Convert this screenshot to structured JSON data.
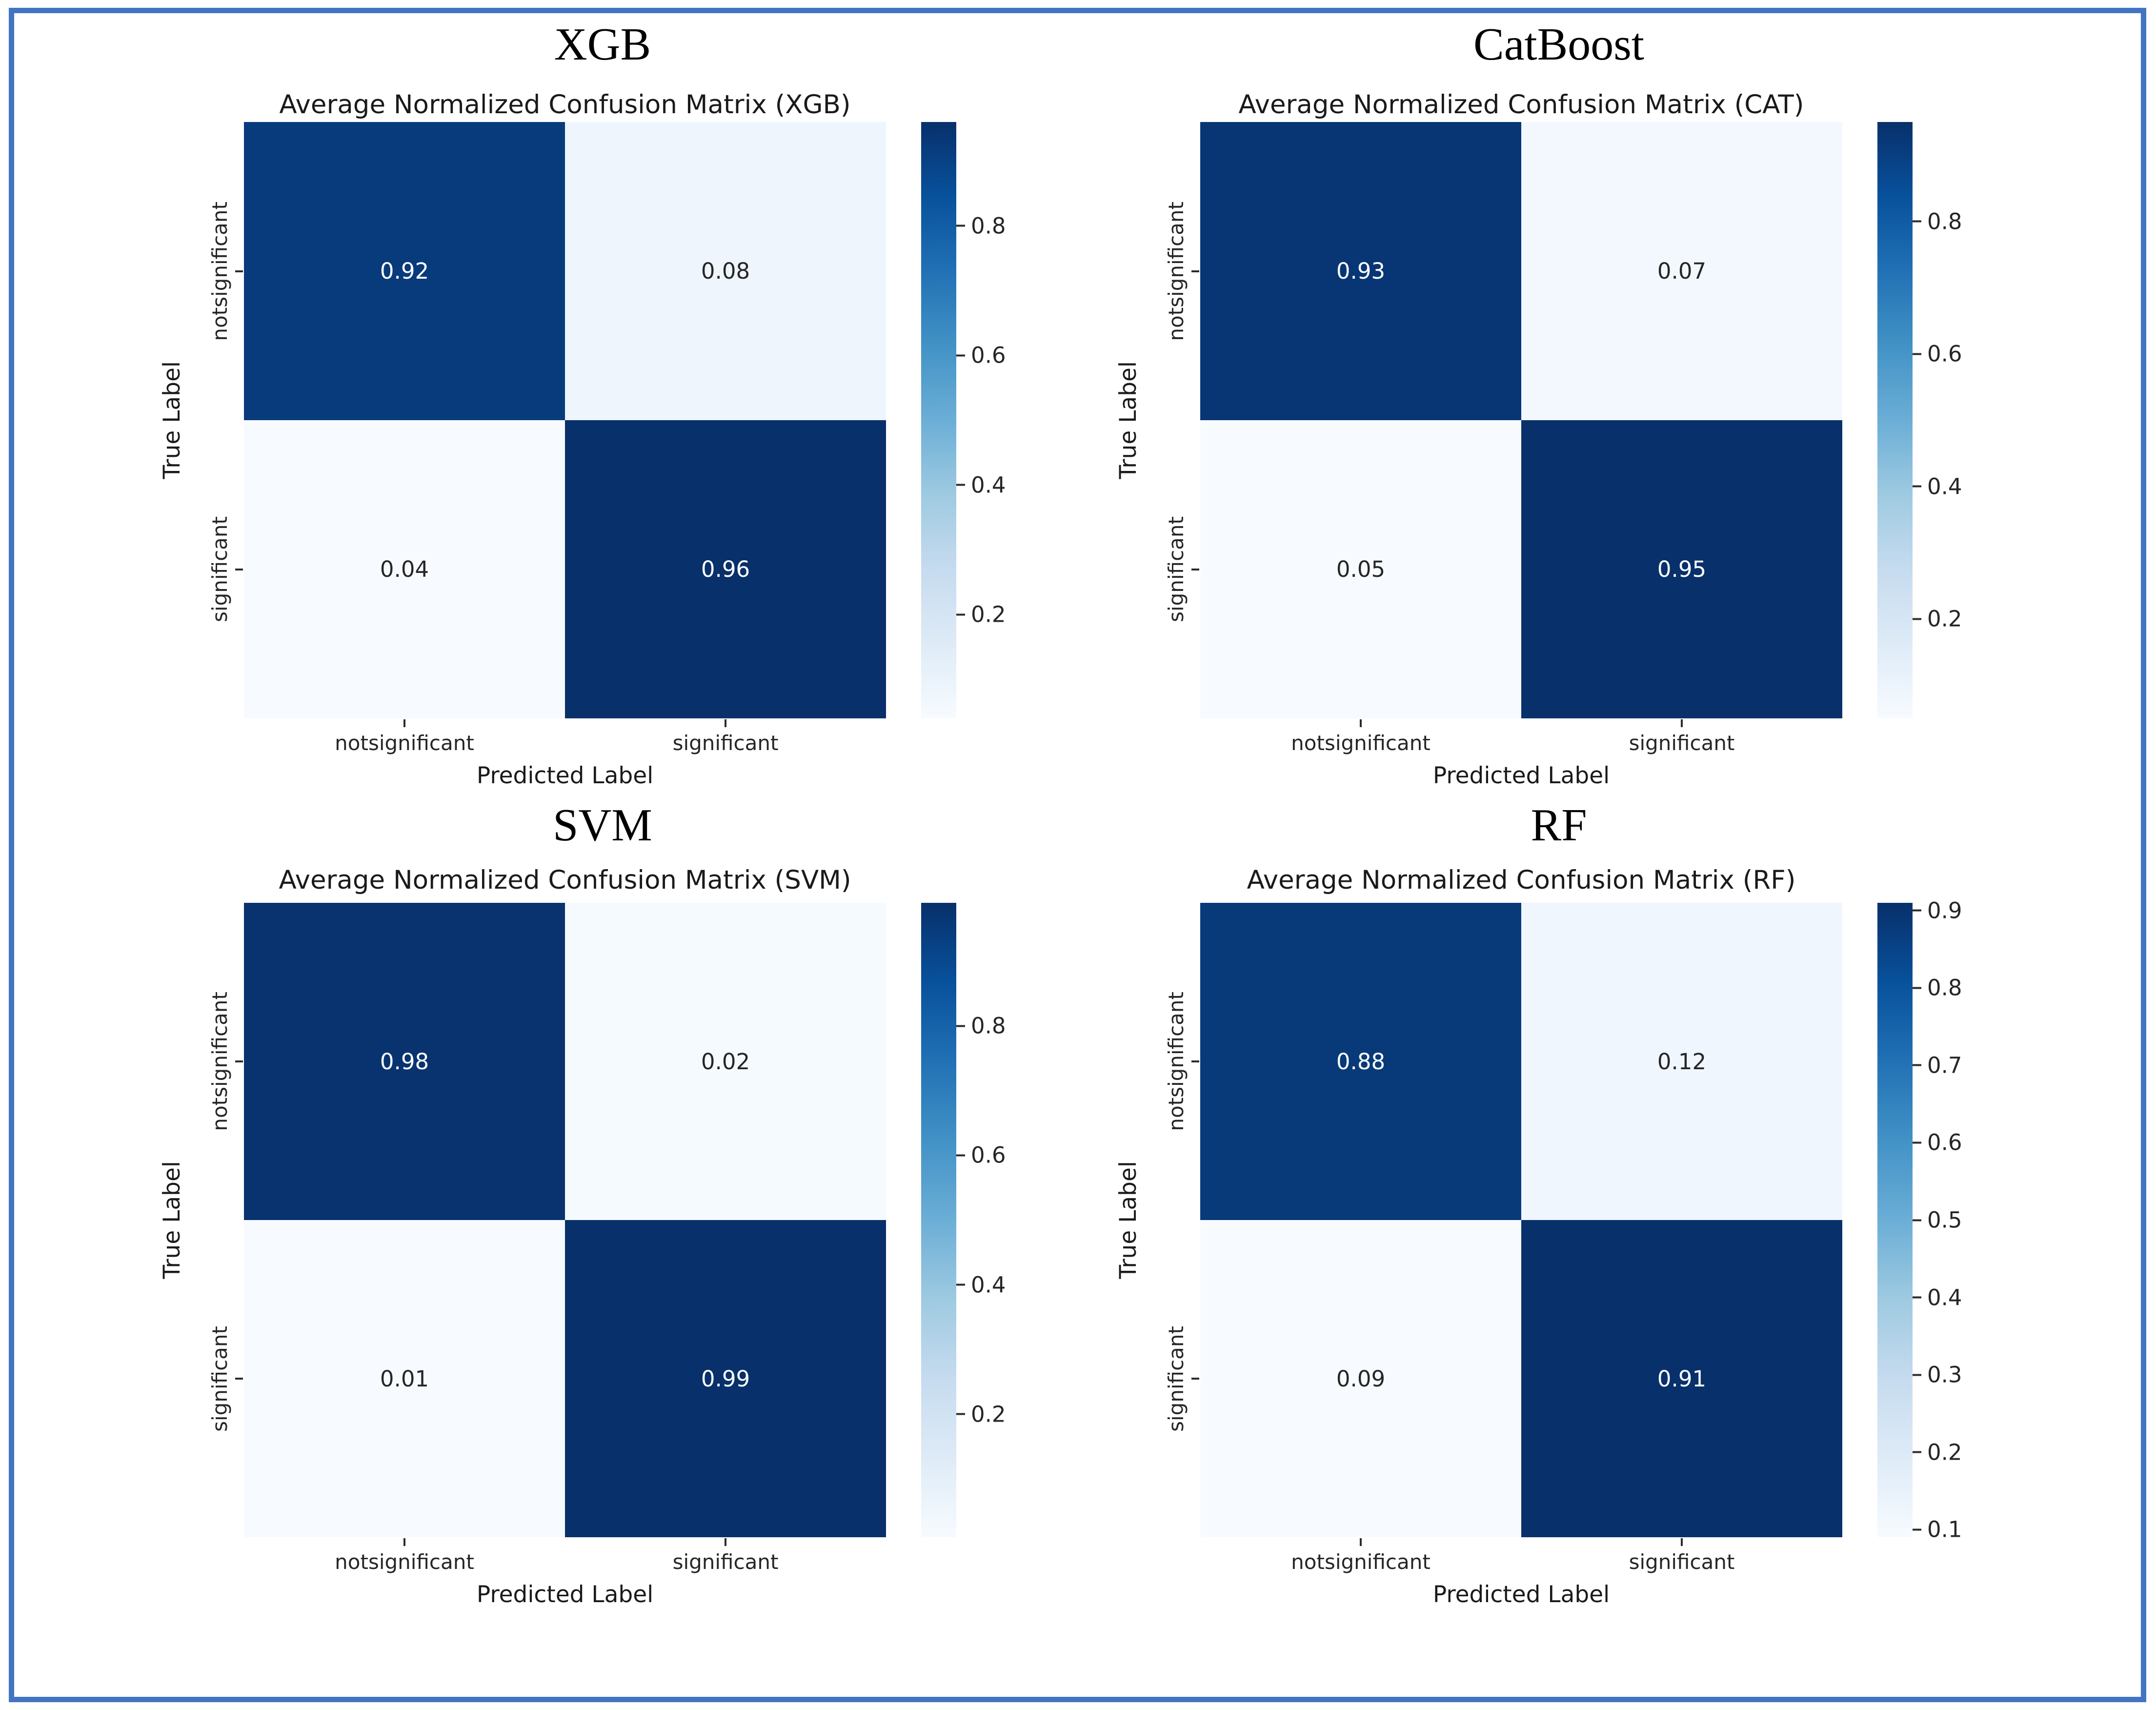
{
  "page": {
    "background": "#ffffff",
    "border_color": "#4374c4"
  },
  "chart_data": [
    {
      "type": "heatmap",
      "model_title": "XGB",
      "title": "Average Normalized Confusion Matrix (XGB)",
      "xlabel": "Predicted Label",
      "ylabel": "True Label",
      "x_categories": [
        "notsignificant",
        "significant"
      ],
      "y_categories": [
        "notsignificant",
        "significant"
      ],
      "values": [
        [
          0.92,
          0.08
        ],
        [
          0.04,
          0.96
        ]
      ],
      "vmin": 0.04,
      "vmax": 0.96,
      "colormap": "Blues",
      "colorbar_ticks": [
        0.8,
        0.6,
        0.4,
        0.2
      ],
      "legend_position": "right-colorbar",
      "grid": false
    },
    {
      "type": "heatmap",
      "model_title": "CatBoost",
      "title": "Average Normalized Confusion Matrix (CAT)",
      "xlabel": "Predicted Label",
      "ylabel": "True Label",
      "x_categories": [
        "notsignificant",
        "significant"
      ],
      "y_categories": [
        "notsignificant",
        "significant"
      ],
      "values": [
        [
          0.93,
          0.07
        ],
        [
          0.05,
          0.95
        ]
      ],
      "vmin": 0.05,
      "vmax": 0.95,
      "colormap": "Blues",
      "colorbar_ticks": [
        0.8,
        0.6,
        0.4,
        0.2
      ],
      "legend_position": "right-colorbar",
      "grid": false
    },
    {
      "type": "heatmap",
      "model_title": "SVM",
      "title": "Average Normalized Confusion Matrix (SVM)",
      "xlabel": "Predicted Label",
      "ylabel": "True Label",
      "x_categories": [
        "notsignificant",
        "significant"
      ],
      "y_categories": [
        "notsignificant",
        "significant"
      ],
      "values": [
        [
          0.98,
          0.02
        ],
        [
          0.01,
          0.99
        ]
      ],
      "vmin": 0.01,
      "vmax": 0.99,
      "colormap": "Blues",
      "colorbar_ticks": [
        0.8,
        0.6,
        0.4,
        0.2
      ],
      "legend_position": "right-colorbar",
      "grid": false
    },
    {
      "type": "heatmap",
      "model_title": "RF",
      "title": "Average Normalized Confusion Matrix (RF)",
      "xlabel": "Predicted Label",
      "ylabel": "True Label",
      "x_categories": [
        "notsignificant",
        "significant"
      ],
      "y_categories": [
        "notsignificant",
        "significant"
      ],
      "values": [
        [
          0.88,
          0.12
        ],
        [
          0.09,
          0.91
        ]
      ],
      "vmin": 0.09,
      "vmax": 0.91,
      "colormap": "Blues",
      "colorbar_ticks": [
        0.9,
        0.8,
        0.7,
        0.6,
        0.5,
        0.4,
        0.3,
        0.2,
        0.1
      ],
      "legend_position": "right-colorbar",
      "grid": false
    }
  ]
}
